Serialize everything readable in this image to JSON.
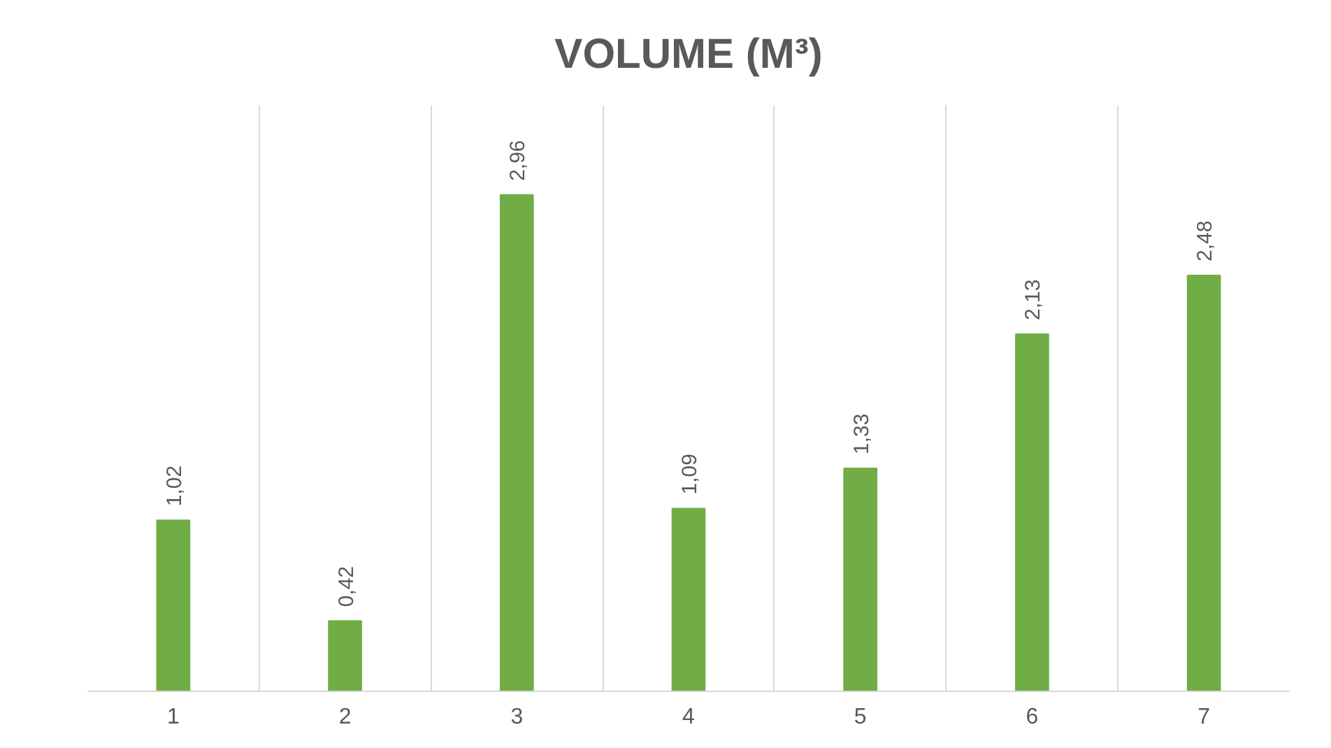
{
  "chart_data": {
    "type": "bar",
    "title": "VOLUME (M³)",
    "categories": [
      "1",
      "2",
      "3",
      "4",
      "5",
      "6",
      "7"
    ],
    "values": [
      1.02,
      0.42,
      2.96,
      1.09,
      1.33,
      2.13,
      2.48
    ],
    "value_labels": [
      "1,02",
      "0,42",
      "2,96",
      "1,09",
      "1,33",
      "2,13",
      "2,48"
    ],
    "color": "#70ad47",
    "grid": "x"
  }
}
